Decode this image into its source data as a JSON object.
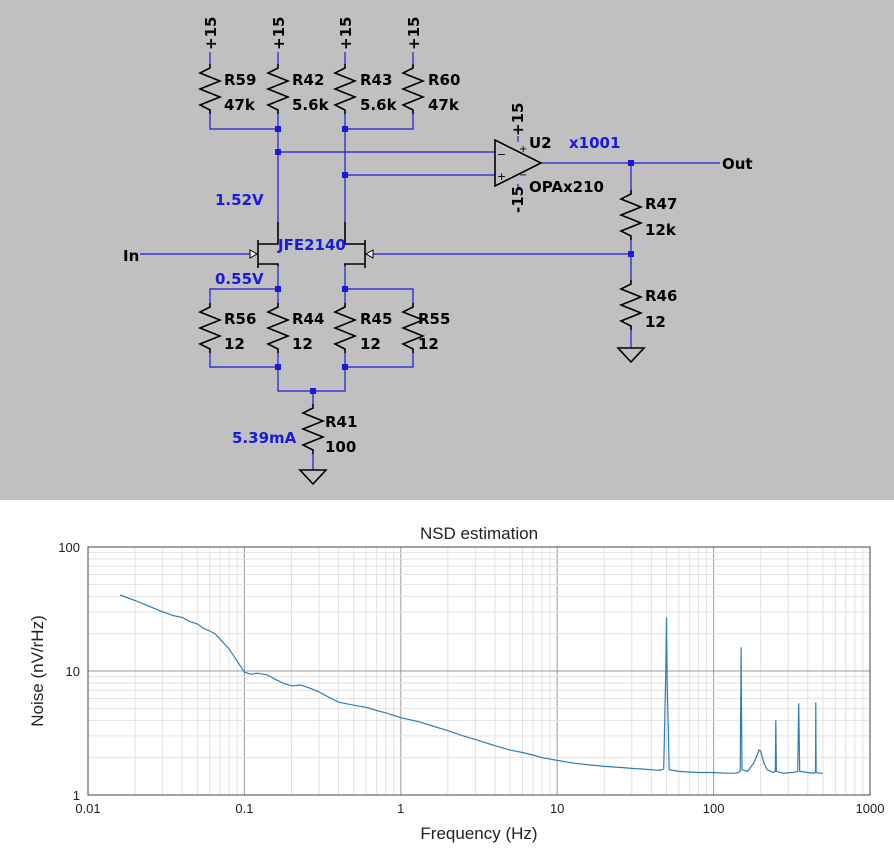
{
  "schematic": {
    "supply_labels": [
      "+15",
      "+15",
      "+15",
      "+15"
    ],
    "resistors": [
      {
        "ref": "R59",
        "value": "47k"
      },
      {
        "ref": "R42",
        "value": "5.6k"
      },
      {
        "ref": "R43",
        "value": "5.6k"
      },
      {
        "ref": "R60",
        "value": "47k"
      },
      {
        "ref": "R56",
        "value": "12"
      },
      {
        "ref": "R44",
        "value": "12"
      },
      {
        "ref": "R45",
        "value": "12"
      },
      {
        "ref": "R55",
        "value": "12"
      },
      {
        "ref": "R41",
        "value": "100"
      },
      {
        "ref": "R47",
        "value": "12k"
      },
      {
        "ref": "R46",
        "value": "12"
      }
    ],
    "opamp": {
      "ref": "U2",
      "model": "OPAx210",
      "vpos": "+15",
      "vneg": "-15",
      "gain": "x1001",
      "minus": "−",
      "plus": "+"
    },
    "jfet_model": "JFE2140",
    "annotations": {
      "v_drain": "1.52V",
      "v_source": "0.55V",
      "i_tail": "5.39mA"
    },
    "ports": {
      "input": "In",
      "output": "Out"
    },
    "colors": {
      "background": "#c0c0c0",
      "wire": "#1a1adc",
      "symbol": "#000000"
    }
  },
  "chart_data": {
    "type": "line",
    "title": "NSD estimation",
    "xlabel": "Frequency (Hz)",
    "ylabel": "Noise (nV/rHz)",
    "xscale": "log",
    "yscale": "log",
    "xlim": [
      0.01,
      1000
    ],
    "ylim": [
      1,
      100
    ],
    "xticks": [
      "0.01",
      "0.1",
      "1",
      "10",
      "100",
      "1000"
    ],
    "yticks": [
      "1",
      "10",
      "100"
    ],
    "grid": true,
    "color": "#2f7db8",
    "series": [
      {
        "x": [
          0.016,
          0.02,
          0.025,
          0.03,
          0.035,
          0.04,
          0.045,
          0.05,
          0.055,
          0.06,
          0.065,
          0.07,
          0.08,
          0.09,
          0.1,
          0.11,
          0.12,
          0.14,
          0.16,
          0.18,
          0.2,
          0.23,
          0.26,
          0.3,
          0.35,
          0.4,
          0.5,
          0.6,
          0.7,
          0.8,
          1.0,
          1.3,
          1.6,
          2.0,
          2.5,
          3.0,
          4.0,
          5.0,
          6.0,
          7.0,
          8.0,
          10,
          13,
          16,
          20,
          25,
          30,
          35,
          40,
          45,
          48,
          49.5,
          50,
          50.5,
          52,
          60,
          80,
          100,
          120,
          140,
          148,
          149.5,
          150,
          150.5,
          152,
          165,
          180,
          190,
          195,
          200,
          210,
          220,
          240,
          248,
          250,
          252,
          280,
          320,
          345,
          350,
          355,
          400,
          440,
          448,
          450,
          452,
          480,
          500
        ],
        "y": [
          41,
          37,
          33,
          30,
          28,
          27,
          25,
          24,
          22,
          21,
          20,
          18,
          15,
          12,
          9.8,
          9.4,
          9.6,
          9.3,
          8.5,
          7.9,
          7.6,
          7.7,
          7.3,
          6.8,
          6.1,
          5.6,
          5.3,
          5.1,
          4.8,
          4.6,
          4.2,
          3.9,
          3.6,
          3.3,
          3.0,
          2.8,
          2.5,
          2.3,
          2.2,
          2.1,
          2.0,
          1.9,
          1.8,
          1.75,
          1.7,
          1.67,
          1.64,
          1.62,
          1.6,
          1.58,
          1.62,
          10,
          27,
          8,
          1.6,
          1.55,
          1.52,
          1.52,
          1.5,
          1.5,
          1.55,
          8,
          15.5,
          6,
          1.6,
          1.55,
          1.8,
          2.1,
          2.3,
          2.25,
          1.8,
          1.6,
          1.52,
          1.55,
          4.0,
          1.55,
          1.5,
          1.52,
          1.55,
          5.5,
          1.55,
          1.52,
          1.5,
          1.52,
          5.6,
          1.52,
          1.5,
          1.5
        ]
      }
    ]
  }
}
